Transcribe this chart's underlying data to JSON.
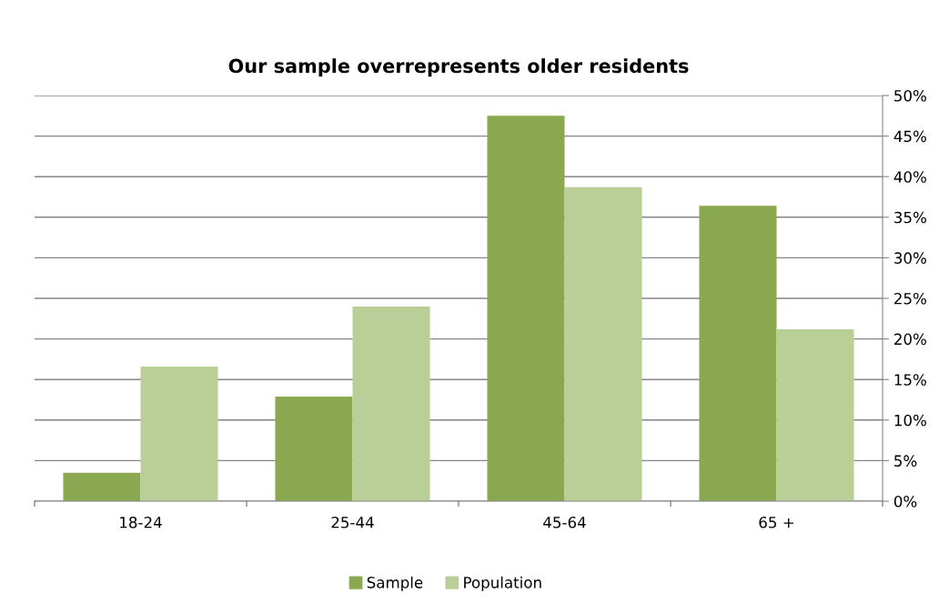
{
  "chart_data": {
    "type": "bar",
    "title": "Our sample overrepresents older residents",
    "categories": [
      "18-24",
      "25-44",
      "45-64",
      "65 +"
    ],
    "series": [
      {
        "name": "Sample",
        "color": "#8aa84f",
        "values": [
          3.5,
          12.9,
          47.5,
          36.4
        ]
      },
      {
        "name": "Population",
        "color": "#bacf97",
        "values": [
          16.6,
          24.0,
          38.7,
          21.2
        ]
      }
    ],
    "ylim": [
      0,
      50
    ],
    "yticks": [
      {
        "value": 0,
        "label": "0%"
      },
      {
        "value": 5,
        "label": "5%"
      },
      {
        "value": 10,
        "label": "10%"
      },
      {
        "value": 15,
        "label": "15%"
      },
      {
        "value": 20,
        "label": "20%"
      },
      {
        "value": 25,
        "label": "25%"
      },
      {
        "value": 30,
        "label": "30%"
      },
      {
        "value": 35,
        "label": "35%"
      },
      {
        "value": 40,
        "label": "40%"
      },
      {
        "value": 45,
        "label": "45%"
      },
      {
        "value": 50,
        "label": "50%"
      }
    ],
    "grid": "y",
    "legend": "bottom"
  }
}
